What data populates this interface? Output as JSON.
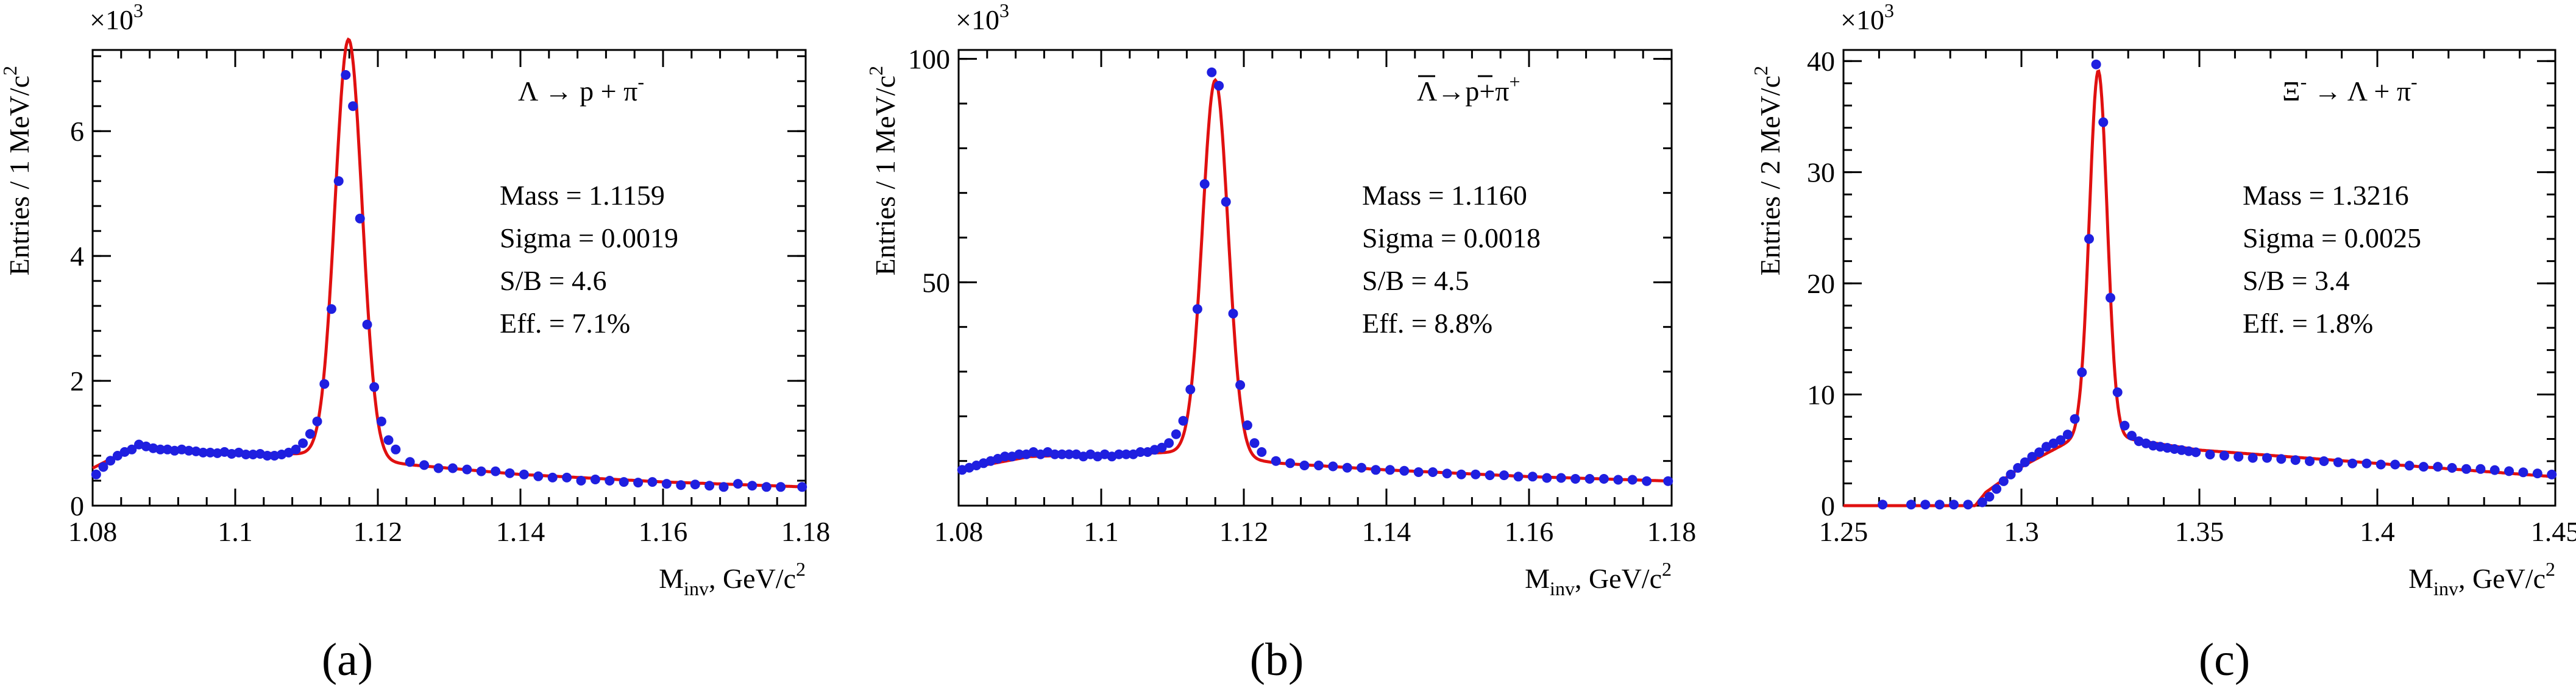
{
  "chart_data": [
    {
      "type": "scatter",
      "panel": "a",
      "caption": "(a)",
      "decay": {
        "base": "Λ → p + π",
        "sup": "-"
      },
      "x_multiplier": "×10",
      "x_multiplier_exp": "3",
      "ylabel": "Entries / 1 MeV/c",
      "ylabel_exp": "2",
      "xlabel": "M",
      "xlabel_sub": "inv",
      "xlabel_tail": ", GeV/c",
      "xlabel_exp": "2",
      "xlim": [
        1.08,
        1.18
      ],
      "ylim": [
        0,
        7.3
      ],
      "xticks": [
        1.08,
        1.1,
        1.12,
        1.14,
        1.16,
        1.18
      ],
      "xtick_labels": [
        "1.08",
        "1.1",
        "1.12",
        "1.14",
        "1.16",
        "1.18"
      ],
      "yticks": [
        0,
        2,
        4,
        6
      ],
      "ytick_labels": [
        "0",
        "2",
        "4",
        "6"
      ],
      "stats": [
        "Mass = 1.1159",
        "Sigma = 0.0019",
        "S/B = 4.6",
        "Eff. = 7.1%"
      ],
      "fit": {
        "mass": 1.1159,
        "sigma": 0.0019,
        "amp": 6.7,
        "bg": [
          [
            1.08,
            0.6
          ],
          [
            1.086,
            0.95
          ],
          [
            1.1,
            0.85
          ],
          [
            1.112,
            0.82
          ],
          [
            1.125,
            0.65
          ],
          [
            1.14,
            0.5
          ],
          [
            1.16,
            0.38
          ],
          [
            1.18,
            0.3
          ]
        ]
      },
      "series": [
        {
          "name": "data",
          "color": "#1f1fe0",
          "x": [
            1.0805,
            1.0815,
            1.0825,
            1.0835,
            1.0845,
            1.0855,
            1.0865,
            1.0875,
            1.0885,
            1.0895,
            1.0905,
            1.0915,
            1.0925,
            1.0935,
            1.0945,
            1.0955,
            1.0965,
            1.0975,
            1.0985,
            1.0995,
            1.1005,
            1.1015,
            1.1025,
            1.1035,
            1.1045,
            1.1055,
            1.1065,
            1.1075,
            1.1085,
            1.1095,
            1.1105,
            1.1115,
            1.1125,
            1.1135,
            1.1145,
            1.1155,
            1.1165,
            1.1175,
            1.1185,
            1.1195,
            1.1205,
            1.1215,
            1.1225,
            1.1245,
            1.1265,
            1.1285,
            1.1305,
            1.1325,
            1.1345,
            1.1365,
            1.1385,
            1.1405,
            1.1425,
            1.1445,
            1.1465,
            1.1485,
            1.1505,
            1.1525,
            1.1545,
            1.1565,
            1.1585,
            1.1605,
            1.1625,
            1.1645,
            1.1665,
            1.1685,
            1.1705,
            1.1725,
            1.1745,
            1.1765,
            1.1795
          ],
          "values": [
            0.5,
            0.62,
            0.72,
            0.8,
            0.86,
            0.9,
            0.98,
            0.95,
            0.92,
            0.9,
            0.9,
            0.88,
            0.9,
            0.88,
            0.87,
            0.85,
            0.85,
            0.84,
            0.86,
            0.83,
            0.85,
            0.82,
            0.82,
            0.83,
            0.8,
            0.8,
            0.82,
            0.85,
            0.9,
            1.0,
            1.15,
            1.35,
            1.95,
            3.15,
            5.2,
            6.9,
            6.4,
            4.6,
            2.9,
            1.9,
            1.35,
            1.05,
            0.9,
            0.7,
            0.65,
            0.6,
            0.6,
            0.58,
            0.55,
            0.55,
            0.52,
            0.5,
            0.47,
            0.45,
            0.45,
            0.4,
            0.42,
            0.4,
            0.38,
            0.37,
            0.38,
            0.35,
            0.33,
            0.34,
            0.32,
            0.3,
            0.35,
            0.32,
            0.3,
            0.3,
            0.3
          ]
        }
      ]
    },
    {
      "type": "scatter",
      "panel": "b",
      "caption": "(b)",
      "decay": {
        "base": "Λ→p+π",
        "sup": "+"
      },
      "x_multiplier": "×10",
      "x_multiplier_exp": "3",
      "ylabel": "Entries / 1 MeV/c",
      "ylabel_exp": "2",
      "xlabel": "M",
      "xlabel_sub": "inv",
      "xlabel_tail": ", GeV/c",
      "xlabel_exp": "2",
      "xlim": [
        1.08,
        1.18
      ],
      "ylim": [
        0,
        102
      ],
      "xticks": [
        1.08,
        1.1,
        1.12,
        1.14,
        1.16,
        1.18
      ],
      "xtick_labels": [
        "1.08",
        "1.1",
        "1.12",
        "1.14",
        "1.16",
        "1.18"
      ],
      "yticks": [
        50,
        100
      ],
      "ytick_labels": [
        "50",
        "100"
      ],
      "stats": [
        "Mass = 1.1160",
        "Sigma = 0.0018",
        "S/B = 4.5",
        "Eff. = 8.8%"
      ],
      "fit": {
        "mass": 1.116,
        "sigma": 0.0018,
        "amp": 84,
        "bg": [
          [
            1.08,
            8
          ],
          [
            1.09,
            11
          ],
          [
            1.1,
            11.5
          ],
          [
            1.112,
            12
          ],
          [
            1.125,
            9.5
          ],
          [
            1.14,
            8
          ],
          [
            1.16,
            6.5
          ],
          [
            1.18,
            5.5
          ]
        ]
      },
      "series": [
        {
          "name": "data",
          "color": "#1f1fe0",
          "x": [
            1.0805,
            1.0815,
            1.0825,
            1.0835,
            1.0845,
            1.0855,
            1.0865,
            1.0875,
            1.0885,
            1.0895,
            1.0905,
            1.0915,
            1.0925,
            1.0935,
            1.0945,
            1.0955,
            1.0965,
            1.0975,
            1.0985,
            1.0995,
            1.1005,
            1.1015,
            1.1025,
            1.1035,
            1.1045,
            1.1055,
            1.1065,
            1.1075,
            1.1085,
            1.1095,
            1.1105,
            1.1115,
            1.1125,
            1.1135,
            1.1145,
            1.1155,
            1.1165,
            1.1175,
            1.1185,
            1.1195,
            1.1205,
            1.1215,
            1.1225,
            1.1245,
            1.1265,
            1.1285,
            1.1305,
            1.1325,
            1.1345,
            1.1365,
            1.1385,
            1.1405,
            1.1425,
            1.1445,
            1.1465,
            1.1485,
            1.1505,
            1.1525,
            1.1545,
            1.1565,
            1.1585,
            1.1605,
            1.1625,
            1.1645,
            1.1665,
            1.1685,
            1.1705,
            1.1725,
            1.1745,
            1.1765,
            1.1795
          ],
          "values": [
            8,
            8.5,
            9,
            9.5,
            10,
            10.5,
            11,
            11,
            11.5,
            11.5,
            12,
            11.5,
            12,
            11.5,
            11.5,
            11.5,
            11.5,
            11,
            11.5,
            11,
            11.5,
            11,
            11.5,
            11.5,
            11.5,
            12,
            12,
            12.5,
            13,
            14,
            16,
            19,
            26,
            44,
            72,
            97,
            94,
            68,
            43,
            27,
            18,
            14,
            12,
            10,
            9.5,
            9,
            9,
            8.8,
            8.5,
            8.5,
            8,
            8,
            7.8,
            7.5,
            7.5,
            7.2,
            7,
            7,
            6.8,
            6.8,
            6.5,
            6.5,
            6.2,
            6.2,
            6,
            6,
            6,
            5.8,
            5.8,
            5.5,
            5.5
          ]
        }
      ]
    },
    {
      "type": "scatter",
      "panel": "c",
      "caption": "(c)",
      "decay": {
        "base": "Ξ",
        "sup": "-",
        "rest": " → Λ + π",
        "sup2": "-"
      },
      "x_multiplier": "×10",
      "x_multiplier_exp": "3",
      "ylabel": "Entries / 2 MeV/c",
      "ylabel_exp": "2",
      "xlabel": "M",
      "xlabel_sub": "inv",
      "xlabel_tail": ", GeV/c",
      "xlabel_exp": "2",
      "xlim": [
        1.25,
        1.45
      ],
      "ylim": [
        0,
        41
      ],
      "xticks": [
        1.25,
        1.3,
        1.35,
        1.4,
        1.45
      ],
      "xtick_labels": [
        "1.25",
        "1.3",
        "1.35",
        "1.4",
        "1.45"
      ],
      "yticks": [
        0,
        10,
        20,
        30,
        40
      ],
      "ytick_labels": [
        "0",
        "10",
        "20",
        "30",
        "40"
      ],
      "stats": [
        "Mass = 1.3216",
        "Sigma = 0.0025",
        "S/B = 3.4",
        "Eff. = 1.8%"
      ],
      "fit": {
        "mass": 1.3216,
        "sigma": 0.0025,
        "amp": 33,
        "bg": [
          [
            1.287,
            0
          ],
          [
            1.29,
            1.2
          ],
          [
            1.3,
            3.5
          ],
          [
            1.31,
            5.2
          ],
          [
            1.316,
            6.2
          ],
          [
            1.33,
            6
          ],
          [
            1.35,
            5
          ],
          [
            1.4,
            3.8
          ],
          [
            1.45,
            2.6
          ]
        ]
      },
      "series": [
        {
          "name": "data",
          "color": "#1f1fe0",
          "x": [
            1.261,
            1.269,
            1.273,
            1.277,
            1.281,
            1.285,
            1.289,
            1.291,
            1.293,
            1.295,
            1.297,
            1.299,
            1.301,
            1.303,
            1.305,
            1.307,
            1.309,
            1.311,
            1.313,
            1.315,
            1.317,
            1.319,
            1.321,
            1.323,
            1.325,
            1.327,
            1.329,
            1.331,
            1.333,
            1.335,
            1.337,
            1.339,
            1.341,
            1.343,
            1.345,
            1.347,
            1.349,
            1.353,
            1.357,
            1.361,
            1.365,
            1.369,
            1.373,
            1.377,
            1.381,
            1.385,
            1.389,
            1.393,
            1.397,
            1.401,
            1.405,
            1.409,
            1.413,
            1.417,
            1.421,
            1.425,
            1.429,
            1.433,
            1.437,
            1.441,
            1.445,
            1.449
          ],
          "values": [
            0.1,
            0.1,
            0.1,
            0.1,
            0.1,
            0.1,
            0.3,
            0.8,
            1.5,
            2.2,
            2.8,
            3.4,
            3.9,
            4.4,
            4.8,
            5.3,
            5.6,
            5.9,
            6.4,
            7.8,
            12,
            24,
            39.7,
            34.5,
            18.7,
            10.2,
            7.2,
            6.3,
            5.8,
            5.6,
            5.4,
            5.3,
            5.2,
            5.1,
            5,
            4.9,
            4.8,
            4.6,
            4.5,
            4.4,
            4.3,
            4.3,
            4.2,
            4.1,
            4,
            4,
            3.9,
            3.8,
            3.8,
            3.7,
            3.7,
            3.6,
            3.5,
            3.5,
            3.4,
            3.3,
            3.3,
            3.2,
            3.1,
            3,
            2.9,
            2.8
          ]
        }
      ]
    }
  ]
}
